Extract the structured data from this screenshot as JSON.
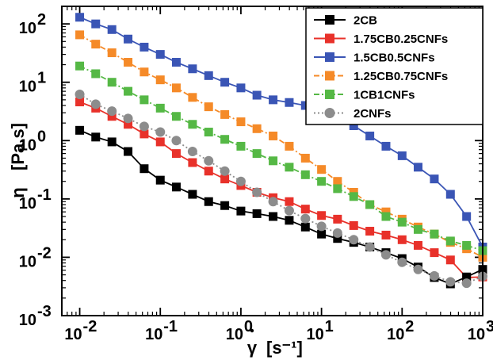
{
  "chart_data": {
    "type": "line",
    "xscale": "log",
    "yscale": "log",
    "xlim": [
      0.006,
      1000
    ],
    "ylim": [
      0.001,
      200
    ],
    "xlabel": {
      "main": "γ",
      "unit": "[s⁻¹]"
    },
    "ylabel": {
      "main": "η",
      "unit": "[Pa.s]"
    },
    "x_ticks": [
      {
        "value": 0.01,
        "label_base": "10",
        "label_exp": "-2"
      },
      {
        "value": 0.1,
        "label_base": "10",
        "label_exp": "-1"
      },
      {
        "value": 1,
        "label_base": "10",
        "label_exp": "0"
      },
      {
        "value": 10,
        "label_base": "10",
        "label_exp": "1"
      },
      {
        "value": 100,
        "label_base": "10",
        "label_exp": "2"
      },
      {
        "value": 1000,
        "label_base": "10",
        "label_exp": "3"
      }
    ],
    "y_ticks": [
      {
        "value": 0.001,
        "label_base": "10",
        "label_exp": "-3"
      },
      {
        "value": 0.01,
        "label_base": "10",
        "label_exp": "-2"
      },
      {
        "value": 0.1,
        "label_base": "10",
        "label_exp": "-1"
      },
      {
        "value": 1,
        "label_base": "10",
        "label_exp": "0"
      },
      {
        "value": 10,
        "label_base": "10",
        "label_exp": "1"
      },
      {
        "value": 100,
        "label_base": "10",
        "label_exp": "2"
      }
    ],
    "legend_position": "top-right",
    "x": [
      0.01,
      0.0126,
      0.0158,
      0.02,
      0.0251,
      0.0316,
      0.0398,
      0.0501,
      0.0631,
      0.0794,
      0.1,
      0.126,
      0.158,
      0.2,
      0.251,
      0.316,
      0.398,
      0.501,
      0.631,
      0.794,
      1,
      1.26,
      1.58,
      2,
      2.51,
      3.16,
      3.98,
      5.01,
      6.31,
      7.94,
      10,
      12.6,
      15.8,
      20,
      25.1,
      31.6,
      39.8,
      50.1,
      63.1,
      79.4,
      100,
      126,
      158,
      200,
      251,
      316,
      398,
      501,
      631,
      794,
      1000
    ],
    "series": [
      {
        "name": "2CB",
        "color": "#000000",
        "marker": "square",
        "dash": "solid",
        "values": [
          1.5,
          null,
          1.15,
          null,
          0.95,
          null,
          0.65,
          null,
          0.33,
          null,
          0.21,
          null,
          0.16,
          null,
          0.12,
          null,
          0.09,
          null,
          0.077,
          null,
          0.062,
          null,
          0.056,
          null,
          0.05,
          null,
          0.043,
          null,
          0.033,
          null,
          0.025,
          null,
          0.021,
          null,
          0.018,
          null,
          0.015,
          null,
          0.012,
          null,
          0.0095,
          null,
          0.0068,
          null,
          0.0045,
          null,
          0.0035,
          null,
          0.0046,
          null,
          0.0062
        ]
      },
      {
        "name": "1.75CB0.25CNFs",
        "color": "#e8312a",
        "marker": "square",
        "dash": "solid",
        "values": [
          4.6,
          null,
          3.6,
          null,
          2.6,
          null,
          1.9,
          null,
          1.3,
          null,
          0.95,
          null,
          0.6,
          null,
          0.42,
          null,
          0.3,
          null,
          0.22,
          null,
          0.17,
          null,
          0.13,
          null,
          0.105,
          null,
          0.09,
          null,
          0.067,
          null,
          0.052,
          null,
          0.045,
          null,
          0.035,
          null,
          0.028,
          null,
          0.024,
          null,
          0.02,
          null,
          0.016,
          null,
          0.012,
          null,
          0.009,
          null,
          0.0045,
          null,
          0.0046
        ]
      },
      {
        "name": "1.5CB0.5CNFs",
        "color": "#3a55b5",
        "marker": "square",
        "dash": "solid",
        "values": [
          130,
          null,
          100,
          null,
          80,
          null,
          55,
          null,
          40,
          null,
          30,
          null,
          22,
          null,
          17,
          null,
          13,
          null,
          10,
          null,
          8,
          null,
          6,
          null,
          5,
          null,
          4.5,
          null,
          4,
          null,
          3.3,
          null,
          2.5,
          null,
          1.8,
          null,
          1.2,
          null,
          0.8,
          null,
          0.55,
          null,
          0.35,
          null,
          0.22,
          null,
          0.12,
          null,
          0.05,
          null,
          0.015
        ]
      },
      {
        "name": "1.25CB0.75CNFs",
        "color": "#f58a28",
        "marker": "square",
        "dash": "dashdot",
        "values": [
          65,
          null,
          45,
          null,
          32,
          null,
          22,
          null,
          15,
          null,
          11,
          null,
          8,
          null,
          5.5,
          null,
          3.8,
          null,
          2.8,
          null,
          2.1,
          null,
          1.6,
          null,
          1.2,
          null,
          0.8,
          null,
          0.5,
          null,
          0.32,
          null,
          0.2,
          null,
          0.13,
          null,
          0.08,
          null,
          0.06,
          null,
          0.045,
          null,
          0.033,
          null,
          0.025,
          null,
          0.018,
          null,
          0.014,
          null,
          0.01
        ]
      },
      {
        "name": "1CB1CNFs",
        "color": "#55b845",
        "marker": "square",
        "dash": "dashdot",
        "values": [
          19,
          null,
          14,
          null,
          10,
          null,
          7,
          null,
          5,
          null,
          3.6,
          null,
          2.6,
          null,
          1.9,
          null,
          1.4,
          null,
          1.05,
          null,
          0.8,
          null,
          0.6,
          null,
          0.45,
          null,
          0.35,
          null,
          0.26,
          null,
          0.2,
          null,
          0.15,
          null,
          0.11,
          null,
          0.08,
          null,
          0.05,
          null,
          0.04,
          null,
          0.03,
          null,
          0.025,
          null,
          0.019,
          null,
          0.016,
          null,
          0.013
        ]
      },
      {
        "name": "2CNFs",
        "color": "#8c8c8c",
        "marker": "circle",
        "dash": "dotted",
        "values": [
          6.2,
          null,
          4.2,
          null,
          3.2,
          null,
          2.4,
          null,
          1.75,
          null,
          1.4,
          null,
          1.0,
          null,
          0.65,
          null,
          0.45,
          null,
          0.3,
          null,
          0.2,
          null,
          0.13,
          null,
          0.09,
          null,
          0.063,
          null,
          0.046,
          null,
          0.034,
          null,
          0.026,
          null,
          0.02,
          null,
          0.015,
          null,
          0.011,
          null,
          0.0082,
          null,
          0.0062,
          null,
          0.0048,
          null,
          0.0038,
          null,
          0.0036,
          null,
          0.0047
        ]
      }
    ]
  }
}
